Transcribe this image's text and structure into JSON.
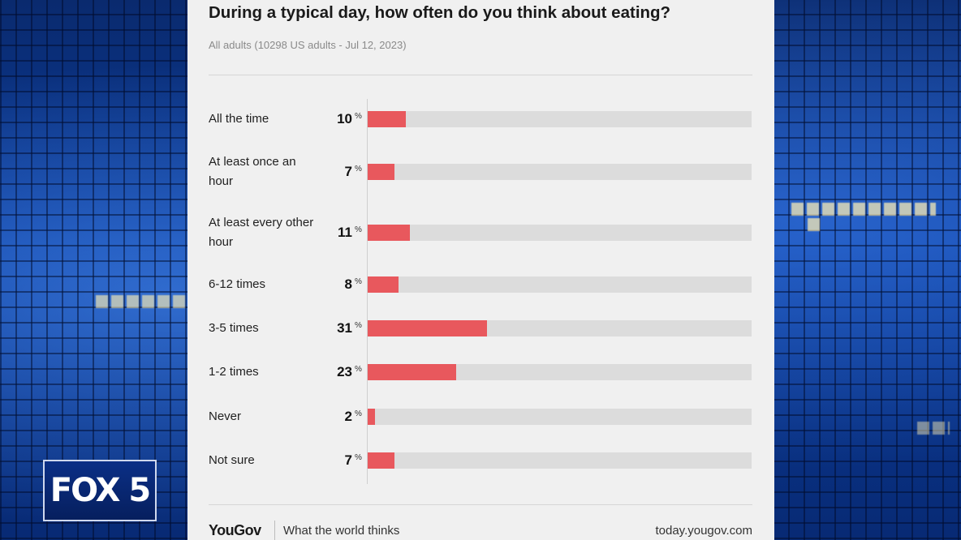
{
  "chart_data": {
    "type": "bar",
    "orientation": "horizontal",
    "title": "During a typical day, how often do you think about eating?",
    "subtitle": "All adults (10298 US adults - Jul 12, 2023)",
    "unit": "%",
    "categories": [
      "All the time",
      "At least once an hour",
      "At least every other hour",
      "6-12 times",
      "3-5 times",
      "1-2 times",
      "Never",
      "Not sure"
    ],
    "values": [
      10,
      7,
      11,
      8,
      31,
      23,
      2,
      7
    ],
    "xlim": [
      0,
      100
    ],
    "bar_color": "#e8585d",
    "track_color": "#dcdcdc"
  },
  "footer": {
    "brand": "YouGov",
    "tagline": "What the world thinks",
    "url": "today.yougov.com"
  },
  "broadcast": {
    "logo": "FOX 5"
  }
}
